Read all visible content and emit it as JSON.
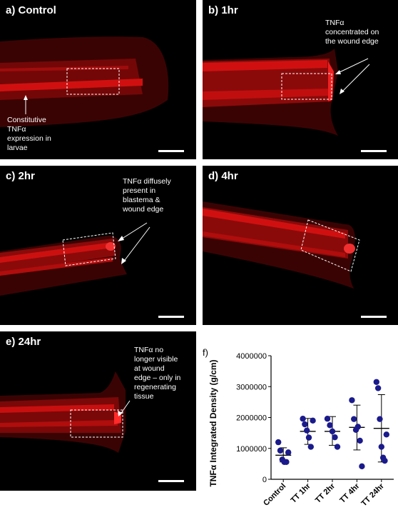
{
  "panels": [
    {
      "label": "a) Control",
      "annotation": "Constitutive\nTNFα\nexpression in\nlarvae"
    },
    {
      "label": "b) 1hr",
      "annotation": "TNFα\nconcentrated on\nthe wound edge"
    },
    {
      "label": "c) 2hr",
      "annotation": "TNFα diffusely\npresent in\nblastema &\nwound edge"
    },
    {
      "label": "d) 4hr",
      "annotation": ""
    },
    {
      "label": "e) 24hr",
      "annotation": "TNFα no\nlonger visible\nat wound\nedge – only in\nregenerating\ntissue"
    }
  ],
  "colors": {
    "fluorescence": "#e01010",
    "dots": "#1a1a8c",
    "background": "#000000"
  },
  "chart_label": "f)",
  "chart_data": {
    "type": "scatter",
    "title": "",
    "xlabel": "",
    "ylabel": "TNFα Integrated Density (g/cm)",
    "ylim": [
      0,
      4000000
    ],
    "yticks": [
      0,
      1000000,
      2000000,
      3000000,
      4000000
    ],
    "ytick_labels": [
      "0",
      "1000000",
      "2000000",
      "3000000",
      "4000000"
    ],
    "categories": [
      "Control",
      "TT 1hr",
      "TT 2hr",
      "TT 4hr",
      "TT 24hr"
    ],
    "points": [
      [
        1200000,
        930000,
        640000,
        560000,
        560000,
        870000
      ],
      [
        1960000,
        1780000,
        1580000,
        1350000,
        1050000,
        1900000
      ],
      [
        1960000,
        1750000,
        1550000,
        1360000,
        1050000
      ],
      [
        2560000,
        1950000,
        1600000,
        1700000,
        1250000,
        420000
      ],
      [
        3150000,
        2950000,
        1950000,
        1050000,
        700000,
        600000,
        1450000
      ]
    ],
    "mean": [
      780000,
      1550000,
      1550000,
      1680000,
      1650000
    ],
    "sd_low": [
      560000,
      1130000,
      1100000,
      950000,
      560000
    ],
    "sd_high": [
      1020000,
      1970000,
      2030000,
      2400000,
      2740000
    ]
  }
}
